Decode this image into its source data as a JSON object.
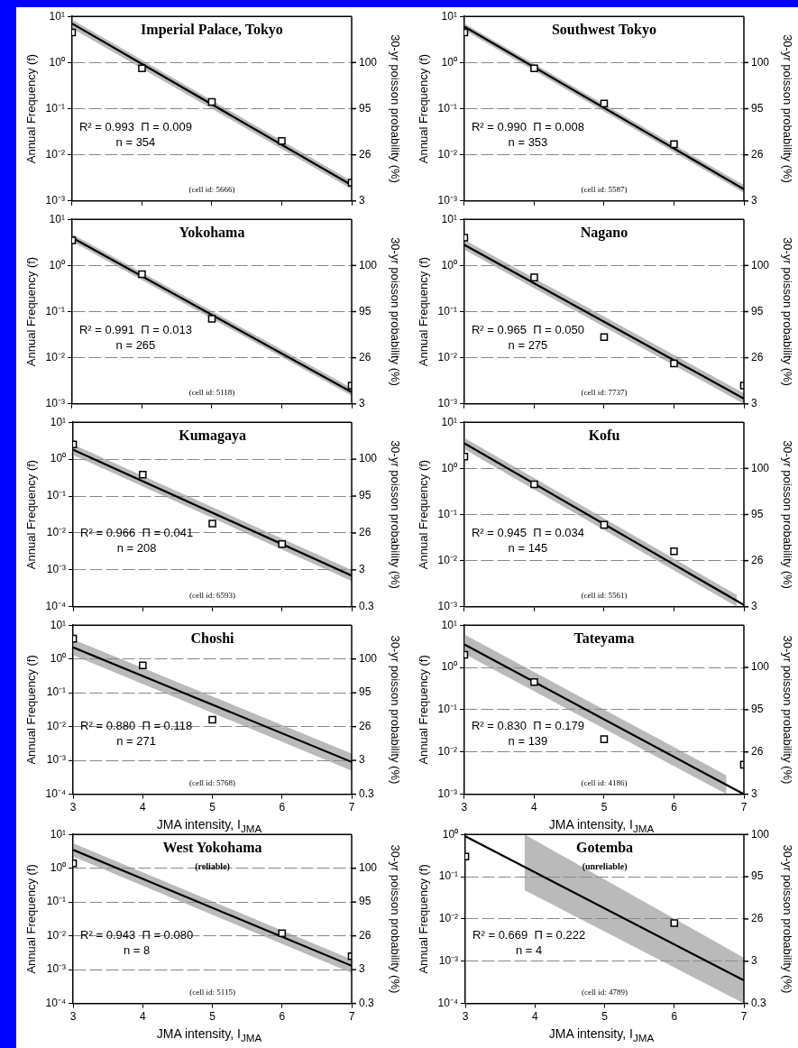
{
  "chart_data": [
    {
      "type": "line",
      "title": "Imperial Palace, Tokyo",
      "ylabel": "Annual Frequency (f)",
      "y2label": "30-yr poisson probability (%)",
      "log": "y",
      "grid": "y",
      "legend": false,
      "marker": "square",
      "tick_labels": "y",
      "xlim": [
        3,
        7
      ],
      "xticks": [
        3,
        4,
        5,
        6,
        7
      ],
      "ylim": [
        0.001,
        10
      ],
      "yticks": [
        {
          "value": 10,
          "label": "10¹"
        },
        {
          "value": 1,
          "label": "10⁰"
        },
        {
          "value": 0.1,
          "label": "10⁻¹"
        },
        {
          "value": 0.01,
          "label": "10⁻²"
        },
        {
          "value": 0.001,
          "label": "10⁻³"
        }
      ],
      "annotations": [
        "R² = 0.993  Π = 0.009",
        "n = 354",
        "(cell id: 5666)",
        "100",
        "95",
        "26",
        "3"
      ],
      "series": [
        {
          "type": "scatter",
          "color": "#000000",
          "x": [
            3,
            4,
            5,
            6,
            7
          ],
          "values": [
            4.5,
            0.75,
            0.14,
            0.02,
            0.0025
          ]
        },
        {
          "marker": "none",
          "color": "#000000",
          "x": [
            3,
            7
          ],
          "values": [
            7,
            0.0022
          ],
          "lower": [
            5.5,
            0.0018
          ],
          "upper": [
            8.5,
            0.0027
          ]
        }
      ]
    },
    {
      "type": "line",
      "title": "Southwest Tokyo",
      "ylabel": "Annual Frequency (f)",
      "y2label": "30-yr poisson probability (%)",
      "log": "y",
      "grid": "y",
      "legend": false,
      "marker": "square",
      "tick_labels": "y",
      "xlim": [
        3,
        7
      ],
      "xticks": [
        3,
        4,
        5,
        6,
        7
      ],
      "ylim": [
        0.001,
        10
      ],
      "yticks": [
        {
          "value": 10,
          "label": "10¹"
        },
        {
          "value": 1,
          "label": "10⁰"
        },
        {
          "value": 0.1,
          "label": "10⁻¹"
        },
        {
          "value": 0.01,
          "label": "10⁻²"
        },
        {
          "value": 0.001,
          "label": "10⁻³"
        }
      ],
      "annotations": [
        "R² = 0.990  Π = 0.008",
        "n = 353",
        "(cell id: 5587)",
        "100",
        "95",
        "26",
        "3"
      ],
      "series": [
        {
          "type": "scatter",
          "color": "#000000",
          "x": [
            3,
            4,
            5,
            6
          ],
          "values": [
            4.5,
            0.75,
            0.13,
            0.017
          ]
        },
        {
          "marker": "none",
          "color": "#000000",
          "x": [
            3,
            7
          ],
          "values": [
            6,
            0.0018
          ],
          "lower": [
            5,
            0.0015
          ],
          "upper": [
            7,
            0.0022
          ]
        }
      ]
    },
    {
      "type": "line",
      "title": "Yokohama",
      "ylabel": "Annual Frequency (f)",
      "y2label": "30-yr poisson probability (%)",
      "log": "y",
      "grid": "y",
      "legend": false,
      "marker": "square",
      "tick_labels": "y",
      "xlim": [
        3,
        7
      ],
      "xticks": [
        3,
        4,
        5,
        6,
        7
      ],
      "ylim": [
        0.001,
        10
      ],
      "yticks": [
        {
          "value": 10,
          "label": "10¹"
        },
        {
          "value": 1,
          "label": "10⁰"
        },
        {
          "value": 0.1,
          "label": "10⁻¹"
        },
        {
          "value": 0.01,
          "label": "10⁻²"
        },
        {
          "value": 0.001,
          "label": "10⁻³"
        }
      ],
      "annotations": [
        "R² = 0.991  Π = 0.013",
        "n = 265",
        "(cell id: 5118)",
        "100",
        "95",
        "26",
        "3"
      ],
      "series": [
        {
          "type": "scatter",
          "color": "#000000",
          "x": [
            3,
            4,
            5,
            7
          ],
          "values": [
            3.5,
            0.65,
            0.07,
            0.0025
          ]
        },
        {
          "marker": "none",
          "color": "#000000",
          "x": [
            3,
            7
          ],
          "values": [
            4,
            0.0018
          ],
          "lower": [
            3.3,
            0.0015
          ],
          "upper": [
            4.8,
            0.0022
          ]
        }
      ]
    },
    {
      "type": "line",
      "title": "Nagano",
      "ylabel": "Annual Frequency (f)",
      "y2label": "30-yr poisson probability (%)",
      "log": "y",
      "grid": "y",
      "legend": false,
      "marker": "square",
      "tick_labels": "y",
      "xlim": [
        3,
        7
      ],
      "xticks": [
        3,
        4,
        5,
        6,
        7
      ],
      "ylim": [
        0.001,
        10
      ],
      "yticks": [
        {
          "value": 10,
          "label": "10¹"
        },
        {
          "value": 1,
          "label": "10⁰"
        },
        {
          "value": 0.1,
          "label": "10⁻¹"
        },
        {
          "value": 0.01,
          "label": "10⁻²"
        },
        {
          "value": 0.001,
          "label": "10⁻³"
        }
      ],
      "annotations": [
        "R² = 0.965  Π = 0.050",
        "n = 275",
        "(cell id: 7737)",
        "100",
        "95",
        "26",
        "3"
      ],
      "series": [
        {
          "type": "scatter",
          "color": "#000000",
          "x": [
            3,
            4,
            5,
            6,
            7
          ],
          "values": [
            4,
            0.55,
            0.028,
            0.0075,
            0.0025
          ]
        },
        {
          "marker": "none",
          "color": "#000000",
          "x": [
            3,
            7
          ],
          "values": [
            2.8,
            0.0013
          ],
          "lower": [
            2.2,
            0.001
          ],
          "upper": [
            3.6,
            0.0017
          ]
        }
      ]
    },
    {
      "type": "line",
      "title": "Kumagaya",
      "ylabel": "Annual Frequency (f)",
      "y2label": "30-yr poisson probability (%)",
      "log": "y",
      "grid": "y",
      "legend": false,
      "marker": "square",
      "tick_labels": "y",
      "xlim": [
        3,
        7
      ],
      "xticks": [
        3,
        4,
        5,
        6,
        7
      ],
      "ylim": [
        0.0001,
        10
      ],
      "yticks": [
        {
          "value": 10,
          "label": "10¹"
        },
        {
          "value": 1,
          "label": "10⁰"
        },
        {
          "value": 0.1,
          "label": "10⁻¹"
        },
        {
          "value": 0.01,
          "label": "10⁻²"
        },
        {
          "value": 0.001,
          "label": "10⁻³"
        },
        {
          "value": 0.0001,
          "label": "10⁻⁴"
        }
      ],
      "annotations": [
        "R² = 0.966  Π = 0.041",
        "n = 208",
        "(cell id: 6593)",
        "100",
        "95",
        "26",
        "3",
        "0.3"
      ],
      "series": [
        {
          "type": "scatter",
          "color": "#000000",
          "x": [
            3,
            4,
            5,
            6
          ],
          "values": [
            2.5,
            0.38,
            0.018,
            0.005
          ]
        },
        {
          "marker": "none",
          "color": "#000000",
          "x": [
            3,
            7
          ],
          "values": [
            1.8,
            0.0007
          ],
          "lower": [
            1.3,
            0.0005
          ],
          "upper": [
            2.5,
            0.001
          ]
        }
      ]
    },
    {
      "type": "line",
      "title": "Kofu",
      "ylabel": "Annual Frequency (f)",
      "y2label": "30-yr poisson probability (%)",
      "log": "y",
      "grid": "y",
      "legend": false,
      "marker": "square",
      "tick_labels": "y",
      "xlim": [
        3,
        7
      ],
      "xticks": [
        3,
        4,
        5,
        6,
        7
      ],
      "ylim": [
        0.001,
        10
      ],
      "yticks": [
        {
          "value": 10,
          "label": "10¹"
        },
        {
          "value": 1,
          "label": "10⁰"
        },
        {
          "value": 0.1,
          "label": "10⁻¹"
        },
        {
          "value": 0.01,
          "label": "10⁻²"
        },
        {
          "value": 0.001,
          "label": "10⁻³"
        }
      ],
      "annotations": [
        "R² = 0.945  Π = 0.034",
        "n = 145",
        "(cell id: 5561)",
        "100",
        "95",
        "26",
        "3"
      ],
      "series": [
        {
          "type": "scatter",
          "color": "#000000",
          "x": [
            3,
            4,
            5,
            6
          ],
          "values": [
            1.8,
            0.45,
            0.06,
            0.016
          ]
        },
        {
          "marker": "none",
          "color": "#000000",
          "x": [
            3,
            6.9,
            7
          ],
          "values": [
            3.5,
            0.00134,
            0.0011
          ],
          "lower": [
            2.6,
            0.001,
            null
          ],
          "upper": [
            4.6,
            0.0018,
            null
          ]
        }
      ]
    },
    {
      "type": "line",
      "title": "Choshi",
      "ylabel": "Annual Frequency (f)",
      "y2label": "30-yr poisson probability (%)",
      "xlabel": "JMA intensity,  I$_{JMA}$",
      "log": "y",
      "grid": "y",
      "legend": false,
      "marker": "square",
      "xlim": [
        3,
        7
      ],
      "xticks": [
        3,
        4,
        5,
        6,
        7
      ],
      "ylim": [
        0.0001,
        10
      ],
      "yticks": [
        {
          "value": 10,
          "label": "10¹"
        },
        {
          "value": 1,
          "label": "10⁰"
        },
        {
          "value": 0.1,
          "label": "10⁻¹"
        },
        {
          "value": 0.01,
          "label": "10⁻²"
        },
        {
          "value": 0.001,
          "label": "10⁻³"
        },
        {
          "value": 0.0001,
          "label": "10⁻⁴"
        }
      ],
      "annotations": [
        "R² = 0.880  Π = 0.118",
        "n = 271",
        "(cell id: 5768)",
        "100",
        "95",
        "26",
        "3",
        "0.3"
      ],
      "series": [
        {
          "type": "scatter",
          "color": "#000000",
          "x": [
            3,
            4,
            5
          ],
          "values": [
            4,
            0.65,
            0.016
          ]
        },
        {
          "marker": "none",
          "color": "#000000",
          "x": [
            3,
            7
          ],
          "values": [
            2.2,
            0.0009
          ],
          "lower": [
            1.3,
            0.0005
          ],
          "upper": [
            3.8,
            0.0016
          ]
        }
      ]
    },
    {
      "type": "line",
      "title": "Tateyama",
      "ylabel": "Annual Frequency (f)",
      "y2label": "30-yr poisson probability (%)",
      "xlabel": "JMA intensity,  I$_{JMA}$",
      "log": "y",
      "grid": "y",
      "legend": false,
      "marker": "square",
      "xlim": [
        3,
        7
      ],
      "xticks": [
        3,
        4,
        5,
        6,
        7
      ],
      "ylim": [
        0.001,
        10
      ],
      "yticks": [
        {
          "value": 10,
          "label": "10¹"
        },
        {
          "value": 1,
          "label": "10⁰"
        },
        {
          "value": 0.1,
          "label": "10⁻¹"
        },
        {
          "value": 0.01,
          "label": "10⁻²"
        },
        {
          "value": 0.001,
          "label": "10⁻³"
        }
      ],
      "annotations": [
        "R² = 0.830  Π = 0.179",
        "n = 139",
        "(cell id: 4186)",
        "100",
        "95",
        "26",
        "3"
      ],
      "series": [
        {
          "type": "scatter",
          "color": "#000000",
          "x": [
            3,
            4,
            5,
            7
          ],
          "values": [
            2,
            0.45,
            0.02,
            0.005
          ]
        },
        {
          "marker": "none",
          "color": "#000000",
          "x": [
            3,
            6.75,
            7
          ],
          "values": [
            3.5,
            0.00166,
            0.001
          ],
          "lower": [
            2.1,
            0.001,
            null
          ],
          "upper": [
            6,
            0.0028,
            null
          ]
        }
      ]
    },
    {
      "type": "line",
      "title": "West Yokohama",
      "subtitle": "(reliable)",
      "ylabel": "Annual Frequency (f)",
      "y2label": "30-yr poisson probability (%)",
      "xlabel": "JMA intensity,  I$_{JMA}$",
      "log": "y",
      "grid": "y",
      "legend": false,
      "marker": "square",
      "xlim": [
        3,
        7
      ],
      "xticks": [
        3,
        4,
        5,
        6,
        7
      ],
      "ylim": [
        0.0001,
        10
      ],
      "yticks": [
        {
          "value": 10,
          "label": "10¹"
        },
        {
          "value": 1,
          "label": "10⁰"
        },
        {
          "value": 0.1,
          "label": "10⁻¹"
        },
        {
          "value": 0.01,
          "label": "10⁻²"
        },
        {
          "value": 0.001,
          "label": "10⁻³"
        },
        {
          "value": 0.0001,
          "label": "10⁻⁴"
        }
      ],
      "annotations": [
        "R² = 0.943  Π = 0.080",
        "n = 8",
        "(cell id: 5115)",
        "100",
        "95",
        "26",
        "3",
        "0.3"
      ],
      "series": [
        {
          "type": "scatter",
          "color": "#000000",
          "x": [
            3,
            6,
            7
          ],
          "values": [
            1.4,
            0.012,
            0.0025
          ]
        },
        {
          "marker": "none",
          "color": "#000000",
          "x": [
            3,
            7
          ],
          "values": [
            3.5,
            0.0013
          ],
          "lower": [
            2.2,
            0.0008
          ],
          "upper": [
            5.5,
            0.002
          ]
        }
      ]
    },
    {
      "type": "line",
      "title": "Gotemba",
      "subtitle": "(unreliable)",
      "ylabel": "Annual Frequency (f)",
      "y2label": "30-yr poisson probability (%)",
      "xlabel": "JMA intensity,  I$_{JMA}$",
      "log": "y",
      "grid": "y",
      "legend": false,
      "marker": "square",
      "xlim": [
        3,
        7
      ],
      "xticks": [
        3,
        4,
        5,
        6,
        7
      ],
      "ylim": [
        0.0001,
        1
      ],
      "yticks": [
        {
          "value": 1,
          "label": "10⁰"
        },
        {
          "value": 0.1,
          "label": "10⁻¹"
        },
        {
          "value": 0.01,
          "label": "10⁻²"
        },
        {
          "value": 0.001,
          "label": "10⁻³"
        },
        {
          "value": 0.0001,
          "label": "10⁻⁴"
        }
      ],
      "annotations": [
        "R² = 0.669  Π = 0.222",
        "n = 4",
        "(cell id: 4789)",
        "100",
        "95",
        "26",
        "3",
        "0.3"
      ],
      "series": [
        {
          "type": "scatter",
          "color": "#000000",
          "x": [
            3,
            6
          ],
          "values": [
            0.3,
            0.008
          ]
        },
        {
          "marker": "none",
          "color": "#000000",
          "x": [
            3,
            3.85,
            7
          ],
          "values": [
            0.9,
            0.17,
            0.00035
          ],
          "lower": [
            null,
            0.048,
            0.0001
          ],
          "upper": [
            null,
            1,
            0.0012
          ]
        }
      ]
    }
  ]
}
